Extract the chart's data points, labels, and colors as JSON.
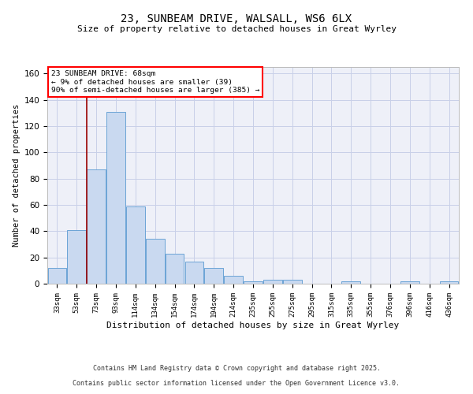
{
  "title": "23, SUNBEAM DRIVE, WALSALL, WS6 6LX",
  "subtitle": "Size of property relative to detached houses in Great Wyrley",
  "xlabel": "Distribution of detached houses by size in Great Wyrley",
  "ylabel": "Number of detached properties",
  "categories": [
    "33sqm",
    "53sqm",
    "73sqm",
    "93sqm",
    "114sqm",
    "134sqm",
    "154sqm",
    "174sqm",
    "194sqm",
    "214sqm",
    "235sqm",
    "255sqm",
    "275sqm",
    "295sqm",
    "315sqm",
    "335sqm",
    "355sqm",
    "376sqm",
    "396sqm",
    "416sqm",
    "436sqm"
  ],
  "values": [
    12,
    41,
    87,
    131,
    59,
    34,
    23,
    17,
    12,
    6,
    2,
    3,
    3,
    0,
    0,
    2,
    0,
    0,
    2,
    0,
    2
  ],
  "bar_color": "#c9d9f0",
  "bar_edge_color": "#6ba3d6",
  "red_line_x": 1.5,
  "annotation_line1": "23 SUNBEAM DRIVE: 68sqm",
  "annotation_line2": "← 9% of detached houses are smaller (39)",
  "annotation_line3": "90% of semi-detached houses are larger (385) →",
  "annotation_box_color": "white",
  "annotation_box_edge_color": "red",
  "red_line_color": "#990000",
  "ylim": [
    0,
    165
  ],
  "yticks": [
    0,
    20,
    40,
    60,
    80,
    100,
    120,
    140,
    160
  ],
  "grid_color": "#c8d0e8",
  "background_color": "#eef0f8",
  "footnote1": "Contains HM Land Registry data © Crown copyright and database right 2025.",
  "footnote2": "Contains public sector information licensed under the Open Government Licence v3.0."
}
